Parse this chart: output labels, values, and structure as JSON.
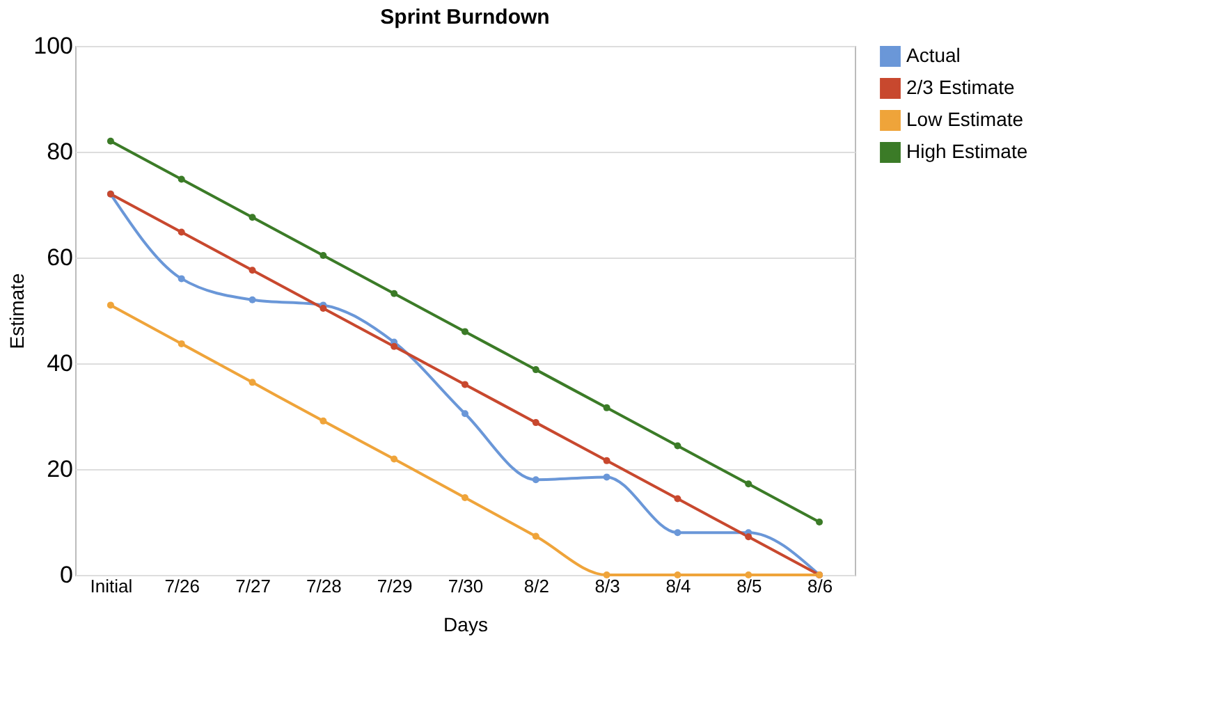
{
  "chart_data": {
    "type": "line",
    "title": "Sprint Burndown",
    "xlabel": "Days",
    "ylabel": "Estimate",
    "categories": [
      "Initial",
      "7/26",
      "7/27",
      "7/28",
      "7/29",
      "7/30",
      "8/2",
      "8/3",
      "8/4",
      "8/5",
      "8/6"
    ],
    "series": [
      {
        "name": "Actual",
        "color": "#6a97d8",
        "values": [
          72,
          56,
          52,
          51,
          44,
          30.5,
          18,
          18.5,
          8,
          8,
          0
        ]
      },
      {
        "name": "2/3 Estimate",
        "color": "#c8482e",
        "values": [
          72,
          64.8,
          57.6,
          50.4,
          43.2,
          36,
          28.8,
          21.6,
          14.4,
          7.2,
          0
        ]
      },
      {
        "name": "Low Estimate",
        "color": "#efa43a",
        "values": [
          51,
          43.7,
          36.4,
          29.1,
          21.9,
          14.6,
          7.3,
          0,
          0,
          0,
          0
        ]
      },
      {
        "name": "High Estimate",
        "color": "#3b7b27",
        "values": [
          82,
          74.8,
          67.6,
          60.4,
          53.2,
          46,
          38.8,
          31.6,
          24.4,
          17.2,
          10
        ]
      }
    ],
    "ylim": [
      0,
      100
    ],
    "yticks": [
      0,
      20,
      40,
      60,
      80,
      100
    ],
    "grid": "y",
    "legend": "right",
    "marker": "circle",
    "line_style": "solid"
  }
}
